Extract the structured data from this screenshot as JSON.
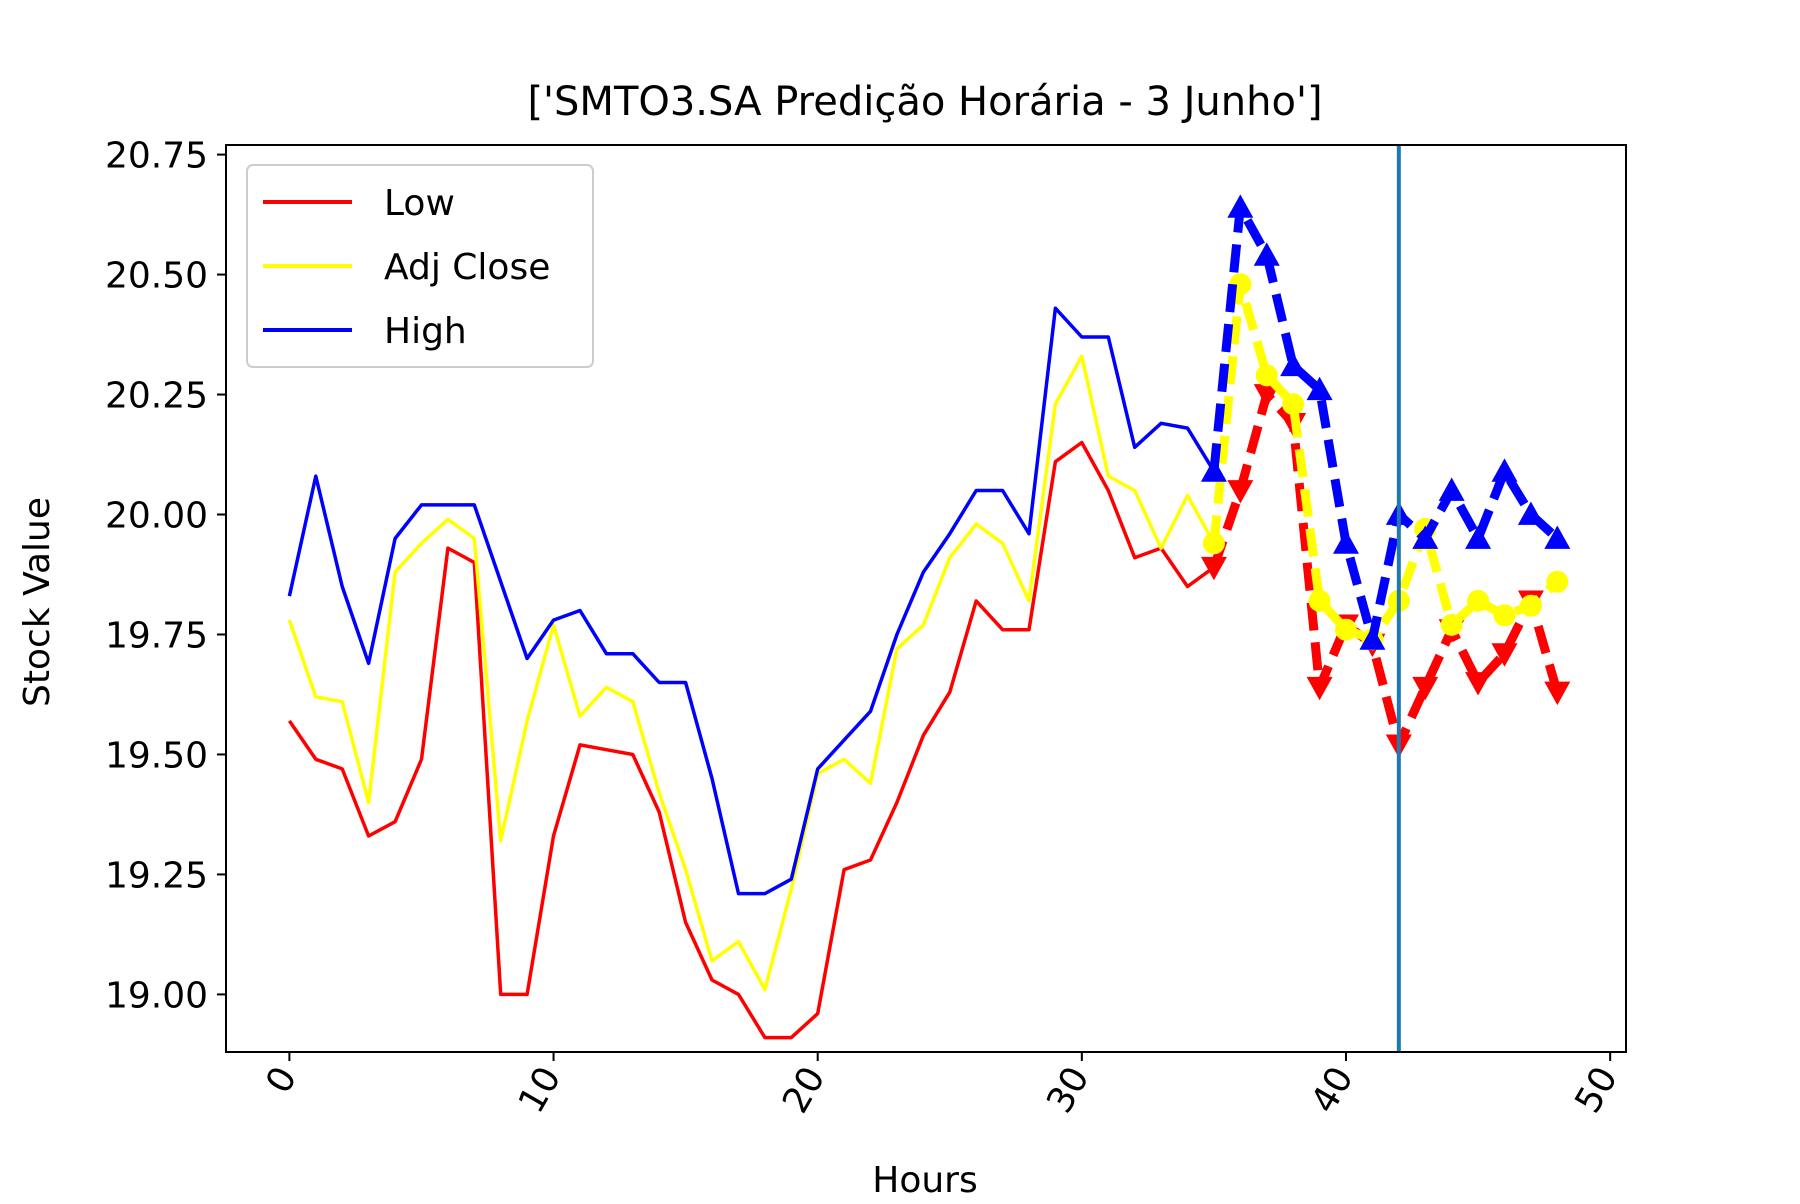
{
  "chart_data": {
    "type": "line",
    "title": "['SMTO3.SA Predição Horária - 3 Junho']",
    "xlabel": "Hours",
    "ylabel": "Stock Value",
    "xlim": [
      -2.4,
      50.6
    ],
    "ylim": [
      18.88,
      20.77
    ],
    "xticks": [
      0,
      10,
      20,
      30,
      40,
      50
    ],
    "xtick_labels": [
      "0",
      "10",
      "20",
      "30",
      "40",
      "50"
    ],
    "yticks": [
      19.0,
      19.25,
      19.5,
      19.75,
      20.0,
      20.25,
      20.5,
      20.75
    ],
    "ytick_labels": [
      "19.00",
      "19.25",
      "19.50",
      "19.75",
      "20.00",
      "20.25",
      "20.50",
      "20.75"
    ],
    "grid": false,
    "legend": {
      "position": "upper-left",
      "entries": [
        "Low",
        "Adj Close",
        "High"
      ]
    },
    "vline": {
      "x": 42,
      "color": "#1f77b4"
    },
    "series": [
      {
        "name": "Low",
        "color": "#ff0000",
        "style": "solid",
        "x": [
          0,
          1,
          2,
          3,
          4,
          5,
          6,
          7,
          8,
          9,
          10,
          11,
          12,
          13,
          14,
          15,
          16,
          17,
          18,
          19,
          20,
          21,
          22,
          23,
          24,
          25,
          26,
          27,
          28,
          29,
          30,
          31,
          32,
          33,
          34,
          35
        ],
        "values": [
          19.57,
          19.49,
          19.47,
          19.33,
          19.36,
          19.49,
          19.93,
          19.9,
          19.0,
          19.0,
          19.33,
          19.52,
          19.51,
          19.5,
          19.38,
          19.15,
          19.03,
          19.0,
          18.91,
          18.91,
          18.96,
          19.26,
          19.28,
          19.4,
          19.54,
          19.63,
          19.82,
          19.76,
          19.76,
          20.11,
          20.15,
          20.05,
          19.91,
          19.93,
          19.85,
          19.89
        ]
      },
      {
        "name": "Adj Close",
        "color": "#ffff00",
        "style": "solid",
        "x": [
          0,
          1,
          2,
          3,
          4,
          5,
          6,
          7,
          8,
          9,
          10,
          11,
          12,
          13,
          14,
          15,
          16,
          17,
          18,
          19,
          20,
          21,
          22,
          23,
          24,
          25,
          26,
          27,
          28,
          29,
          30,
          31,
          32,
          33,
          34,
          35
        ],
        "values": [
          19.78,
          19.62,
          19.61,
          19.4,
          19.88,
          19.94,
          19.99,
          19.95,
          19.32,
          19.57,
          19.77,
          19.58,
          19.64,
          19.61,
          19.42,
          19.26,
          19.07,
          19.11,
          19.01,
          19.22,
          19.46,
          19.49,
          19.44,
          19.72,
          19.77,
          19.91,
          19.98,
          19.94,
          19.82,
          20.23,
          20.33,
          20.08,
          20.05,
          19.93,
          20.04,
          19.94
        ]
      },
      {
        "name": "High",
        "color": "#0000ff",
        "style": "solid",
        "x": [
          0,
          1,
          2,
          3,
          4,
          5,
          6,
          7,
          8,
          9,
          10,
          11,
          12,
          13,
          14,
          15,
          16,
          17,
          18,
          19,
          20,
          21,
          22,
          23,
          24,
          25,
          26,
          27,
          28,
          29,
          30,
          31,
          32,
          33,
          34,
          35
        ],
        "values": [
          19.83,
          20.08,
          19.85,
          19.69,
          19.95,
          20.02,
          20.02,
          20.02,
          19.86,
          19.7,
          19.78,
          19.8,
          19.71,
          19.71,
          19.65,
          19.65,
          19.45,
          19.21,
          19.21,
          19.24,
          19.47,
          19.53,
          19.59,
          19.75,
          19.88,
          19.96,
          20.05,
          20.05,
          19.96,
          20.43,
          20.37,
          20.37,
          20.14,
          20.19,
          20.18,
          20.09
        ]
      },
      {
        "name": "",
        "color": "#ff0000",
        "style": "dashed",
        "marker": "triangle-down",
        "x": [
          35,
          36,
          37,
          38,
          39,
          40,
          41,
          42,
          43,
          44,
          45,
          46,
          47,
          48
        ],
        "values": [
          19.89,
          20.05,
          20.25,
          20.19,
          19.64,
          19.77,
          19.73,
          19.52,
          19.64,
          19.76,
          19.65,
          19.71,
          19.82,
          19.63
        ]
      },
      {
        "name": "",
        "color": "#ffff00",
        "style": "dashed",
        "marker": "circle",
        "x": [
          35,
          36,
          37,
          38,
          39,
          40,
          41,
          42,
          43,
          44,
          45,
          46,
          47,
          48
        ],
        "values": [
          19.94,
          20.48,
          20.29,
          20.23,
          19.82,
          19.76,
          19.74,
          19.82,
          19.97,
          19.77,
          19.82,
          19.79,
          19.81,
          19.86
        ]
      },
      {
        "name": "",
        "color": "#0000ff",
        "style": "dashed",
        "marker": "triangle-up",
        "x": [
          35,
          36,
          37,
          38,
          39,
          40,
          41,
          42,
          43,
          44,
          45,
          46,
          47,
          48
        ],
        "values": [
          20.09,
          20.64,
          20.54,
          20.31,
          20.26,
          19.94,
          19.74,
          20.0,
          19.95,
          20.05,
          19.95,
          20.09,
          20.0,
          19.95
        ]
      }
    ]
  }
}
